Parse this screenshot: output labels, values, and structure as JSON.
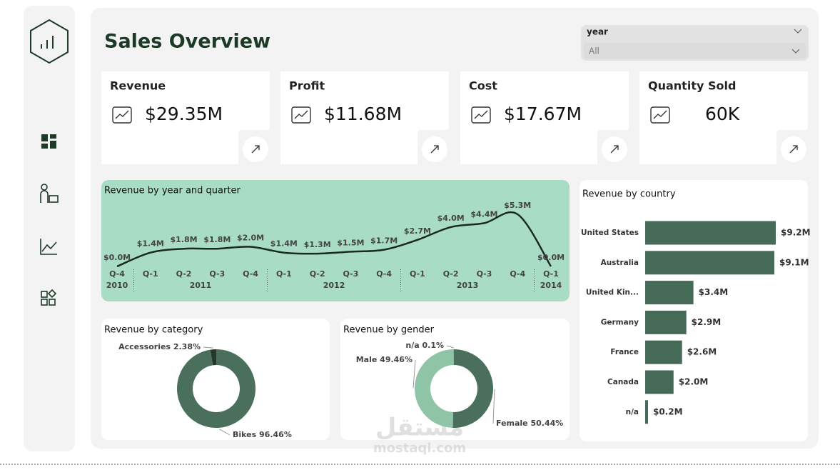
{
  "header": {
    "title": "Sales Overview"
  },
  "filter": {
    "label": "year",
    "value": "All"
  },
  "kpis": [
    {
      "label": "Revenue",
      "value": "$29.35M"
    },
    {
      "label": "Profit",
      "value": "$11.68M"
    },
    {
      "label": "Cost",
      "value": "$17.67M"
    },
    {
      "label": "Quantity Sold",
      "value": "60K"
    }
  ],
  "watermark": [
    "مستقل",
    "mostaql.com"
  ],
  "chart_data": [
    {
      "type": "line",
      "title": "Revenue by year and quarter",
      "color": "#1b2a20",
      "categories": [
        {
          "quarter": "Q-4",
          "year": "2010"
        },
        {
          "quarter": "Q-1",
          "year": "2011"
        },
        {
          "quarter": "Q-2",
          "year": "2011"
        },
        {
          "quarter": "Q-3",
          "year": "2011"
        },
        {
          "quarter": "Q-4",
          "year": "2011"
        },
        {
          "quarter": "Q-1",
          "year": "2012"
        },
        {
          "quarter": "Q-2",
          "year": "2012"
        },
        {
          "quarter": "Q-3",
          "year": "2012"
        },
        {
          "quarter": "Q-4",
          "year": "2012"
        },
        {
          "quarter": "Q-1",
          "year": "2013"
        },
        {
          "quarter": "Q-2",
          "year": "2013"
        },
        {
          "quarter": "Q-3",
          "year": "2013"
        },
        {
          "quarter": "Q-4",
          "year": "2013"
        },
        {
          "quarter": "Q-1",
          "year": "2014"
        }
      ],
      "values": [
        0.0,
        1.4,
        1.8,
        1.8,
        2.0,
        1.4,
        1.3,
        1.5,
        1.7,
        2.7,
        4.0,
        4.4,
        5.3,
        0.0
      ],
      "value_labels": [
        "$0.0M",
        "$1.4M",
        "$1.8M",
        "$1.8M",
        "$2.0M",
        "$1.4M",
        "$1.3M",
        "$1.5M",
        "$1.7M",
        "$2.7M",
        "$4.0M",
        "$4.4M",
        "$5.3M",
        "$0.0M"
      ]
    },
    {
      "type": "donut",
      "title": "Revenue by category",
      "categories": [
        "Accessories",
        "Bikes"
      ],
      "values": [
        2.38,
        96.46
      ],
      "value_labels": [
        "2.38%",
        "96.46%"
      ],
      "colors": [
        "#25382c",
        "#4a6f5c"
      ]
    },
    {
      "type": "donut",
      "title": "Revenue by gender",
      "categories": [
        "n/a",
        "Male",
        "Female"
      ],
      "values": [
        0.1,
        49.46,
        50.44
      ],
      "value_labels": [
        "0.1%",
        "49.46%",
        "50.44%"
      ],
      "colors": [
        "#25382c",
        "#8fc4a6",
        "#4a6f5c"
      ]
    },
    {
      "type": "hbar",
      "title": "Revenue by country",
      "color": "#456b58",
      "categories": [
        "United States",
        "Australia",
        "United Kin...",
        "Germany",
        "France",
        "Canada",
        "n/a"
      ],
      "values": [
        9.2,
        9.1,
        3.4,
        2.9,
        2.6,
        2.0,
        0.2
      ],
      "value_labels": [
        "$9.2M",
        "$9.1M",
        "$3.4M",
        "$2.9M",
        "$2.6M",
        "$2.0M",
        "$0.2M"
      ]
    }
  ]
}
